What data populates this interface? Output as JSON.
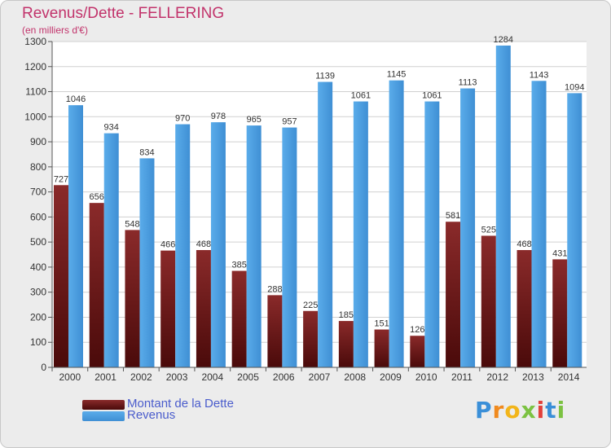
{
  "title": "Revenus/Dette - FELLERING",
  "subtitle": "(en milliers d'€)",
  "colors": {
    "dette": "#7a1f1f",
    "revenus": "#4a9ee0",
    "title": "#c2336b",
    "legend_text": "#4a5ccc"
  },
  "chart_data": {
    "type": "bar",
    "title": "Revenus/Dette - FELLERING",
    "subtitle": "(en milliers d'€)",
    "categories": [
      "2000",
      "2001",
      "2002",
      "2003",
      "2004",
      "2005",
      "2006",
      "2007",
      "2008",
      "2009",
      "2010",
      "2011",
      "2012",
      "2013",
      "2014"
    ],
    "series": [
      {
        "name": "Montant de la Dette",
        "values": [
          727,
          656,
          548,
          466,
          468,
          385,
          288,
          225,
          185,
          151,
          126,
          581,
          525,
          468,
          431
        ]
      },
      {
        "name": "Revenus",
        "values": [
          1046,
          934,
          834,
          970,
          978,
          965,
          957,
          1139,
          1061,
          1145,
          1061,
          1113,
          1284,
          1143,
          1094
        ]
      }
    ],
    "ylim": [
      0,
      1300
    ],
    "yticks": [
      0,
      100,
      200,
      300,
      400,
      500,
      600,
      700,
      800,
      900,
      1000,
      1100,
      1200,
      1300
    ],
    "grid": true,
    "legend_position": "bottom-left"
  },
  "legend": {
    "dette_label": "Montant de la Dette",
    "revenus_label": "Revenus"
  },
  "logo": {
    "text": "Proxiti"
  }
}
